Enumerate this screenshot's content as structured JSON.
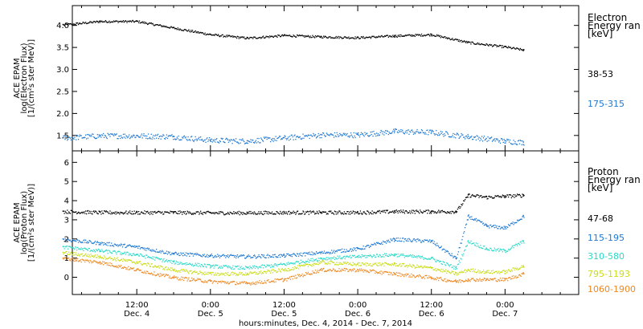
{
  "chart_data": [
    {
      "type": "scatter",
      "panel": "electron",
      "ylabel": [
        "ACE EPAM",
        "log(Electron Flux)",
        "[1/(cm²s ster MeV)]"
      ],
      "ylim": [
        1.15,
        4.45
      ],
      "ytick_values": [
        1.5,
        2.0,
        2.5,
        3.0,
        3.5,
        4.0
      ],
      "ytick_labels": [
        "1.5",
        "2.0",
        "2.5",
        "3.0",
        "3.5",
        "4.0"
      ],
      "legend_title": [
        "Electron",
        "Energy ran",
        "[keV]"
      ],
      "series": [
        {
          "name": "38-53",
          "color": "#000000",
          "x": [
            "Dec 4 00:00",
            "Dec 4 06:00",
            "Dec 4 12:00",
            "Dec 4 18:00",
            "Dec 5 00:00",
            "Dec 5 06:00",
            "Dec 5 12:00",
            "Dec 5 18:00",
            "Dec 6 00:00",
            "Dec 6 06:00",
            "Dec 6 12:00",
            "Dec 6 18:00",
            "Dec 7 00:00",
            "Dec 7 03:00"
          ],
          "values": [
            4.02,
            4.1,
            4.1,
            3.95,
            3.8,
            3.72,
            3.78,
            3.75,
            3.73,
            3.77,
            3.8,
            3.62,
            3.52,
            3.45
          ]
        },
        {
          "name": "175-315",
          "color": "#1e78d2",
          "x": [
            "Dec 4 00:00",
            "Dec 4 06:00",
            "Dec 4 12:00",
            "Dec 4 18:00",
            "Dec 5 00:00",
            "Dec 5 06:00",
            "Dec 5 12:00",
            "Dec 5 18:00",
            "Dec 6 00:00",
            "Dec 6 06:00",
            "Dec 6 12:00",
            "Dec 6 18:00",
            "Dec 7 00:00",
            "Dec 7 03:00"
          ],
          "values": [
            1.45,
            1.5,
            1.5,
            1.48,
            1.4,
            1.38,
            1.45,
            1.52,
            1.52,
            1.6,
            1.58,
            1.48,
            1.38,
            1.35
          ]
        }
      ]
    },
    {
      "type": "scatter",
      "panel": "proton",
      "ylabel": [
        "ACE EPAM",
        "log(Proton Flux)",
        "[1/(cm²s ster MeV)]"
      ],
      "ylim": [
        -0.9,
        6.6
      ],
      "ytick_values": [
        0,
        1,
        2,
        3,
        4,
        5,
        6
      ],
      "ytick_labels": [
        "0",
        "1",
        "2",
        "3",
        "4",
        "5",
        "6"
      ],
      "legend_title": [
        "Proton",
        "Energy ran",
        "[keV]"
      ],
      "series": [
        {
          "name": "47-68",
          "color": "#000000",
          "x": [
            "Dec 4 00:00",
            "Dec 4 06:00",
            "Dec 4 12:00",
            "Dec 4 18:00",
            "Dec 5 00:00",
            "Dec 5 06:00",
            "Dec 5 12:00",
            "Dec 5 18:00",
            "Dec 6 00:00",
            "Dec 6 06:00",
            "Dec 6 12:00",
            "Dec 6 16:00",
            "Dec 6 18:00",
            "Dec 6 21:00",
            "Dec 7 00:00",
            "Dec 7 03:00"
          ],
          "values": [
            3.45,
            3.4,
            3.4,
            3.4,
            3.38,
            3.38,
            3.4,
            3.4,
            3.4,
            3.45,
            3.45,
            3.45,
            4.3,
            4.2,
            4.25,
            4.3
          ]
        },
        {
          "name": "115-195",
          "color": "#1e78d2",
          "x": [
            "Dec 4 00:00",
            "Dec 4 06:00",
            "Dec 4 12:00",
            "Dec 4 18:00",
            "Dec 5 00:00",
            "Dec 5 06:00",
            "Dec 5 12:00",
            "Dec 5 18:00",
            "Dec 6 00:00",
            "Dec 6 06:00",
            "Dec 6 12:00",
            "Dec 6 16:00",
            "Dec 6 18:00",
            "Dec 6 21:00",
            "Dec 7 00:00",
            "Dec 7 03:00"
          ],
          "values": [
            2.0,
            1.8,
            1.6,
            1.25,
            1.15,
            1.1,
            1.15,
            1.3,
            1.5,
            2.0,
            1.9,
            1.0,
            3.2,
            2.7,
            2.6,
            3.2
          ]
        },
        {
          "name": "310-580",
          "color": "#2bd9c9",
          "x": [
            "Dec 4 00:00",
            "Dec 4 06:00",
            "Dec 4 12:00",
            "Dec 4 18:00",
            "Dec 5 00:00",
            "Dec 5 06:00",
            "Dec 5 12:00",
            "Dec 5 18:00",
            "Dec 6 00:00",
            "Dec 6 06:00",
            "Dec 6 12:00",
            "Dec 6 16:00",
            "Dec 6 18:00",
            "Dec 6 21:00",
            "Dec 7 00:00",
            "Dec 7 03:00"
          ],
          "values": [
            1.6,
            1.4,
            1.2,
            0.8,
            0.6,
            0.5,
            0.7,
            1.0,
            1.1,
            1.2,
            1.0,
            0.5,
            1.9,
            1.5,
            1.4,
            1.9
          ]
        },
        {
          "name": "795-1193",
          "color": "#c8dc14",
          "x": [
            "Dec 4 00:00",
            "Dec 4 06:00",
            "Dec 4 12:00",
            "Dec 4 18:00",
            "Dec 5 00:00",
            "Dec 5 06:00",
            "Dec 5 12:00",
            "Dec 5 18:00",
            "Dec 6 00:00",
            "Dec 6 06:00",
            "Dec 6 12:00",
            "Dec 6 16:00",
            "Dec 6 18:00",
            "Dec 6 21:00",
            "Dec 7 00:00",
            "Dec 7 03:00"
          ],
          "values": [
            1.3,
            1.1,
            0.8,
            0.4,
            0.2,
            0.2,
            0.4,
            0.8,
            0.7,
            0.7,
            0.5,
            0.2,
            0.4,
            0.3,
            0.3,
            0.6
          ]
        },
        {
          "name": "1060-1900",
          "color": "#ee8820",
          "x": [
            "Dec 4 00:00",
            "Dec 4 06:00",
            "Dec 4 12:00",
            "Dec 4 18:00",
            "Dec 5 00:00",
            "Dec 5 06:00",
            "Dec 5 12:00",
            "Dec 5 18:00",
            "Dec 6 00:00",
            "Dec 6 06:00",
            "Dec 6 12:00",
            "Dec 6 16:00",
            "Dec 6 18:00",
            "Dec 6 21:00",
            "Dec 7 00:00",
            "Dec 7 03:00"
          ],
          "values": [
            1.0,
            0.8,
            0.4,
            0.0,
            -0.2,
            -0.3,
            -0.1,
            0.4,
            0.4,
            0.2,
            0.0,
            -0.2,
            -0.1,
            -0.1,
            -0.1,
            0.2
          ]
        }
      ]
    }
  ],
  "x_axis": {
    "ticks": [
      {
        "hour": 12,
        "top": "12:00",
        "bottom": "Dec. 4"
      },
      {
        "hour": 24,
        "top": "0:00",
        "bottom": "Dec. 5"
      },
      {
        "hour": 36,
        "top": "12:00",
        "bottom": "Dec. 5"
      },
      {
        "hour": 48,
        "top": "0:00",
        "bottom": "Dec. 6"
      },
      {
        "hour": 60,
        "top": "12:00",
        "bottom": "Dec. 6"
      },
      {
        "hour": 72,
        "top": "0:00",
        "bottom": "Dec. 7"
      }
    ],
    "label": "hours:minutes, Dec.  4, 2014 - Dec.  7, 2014"
  }
}
